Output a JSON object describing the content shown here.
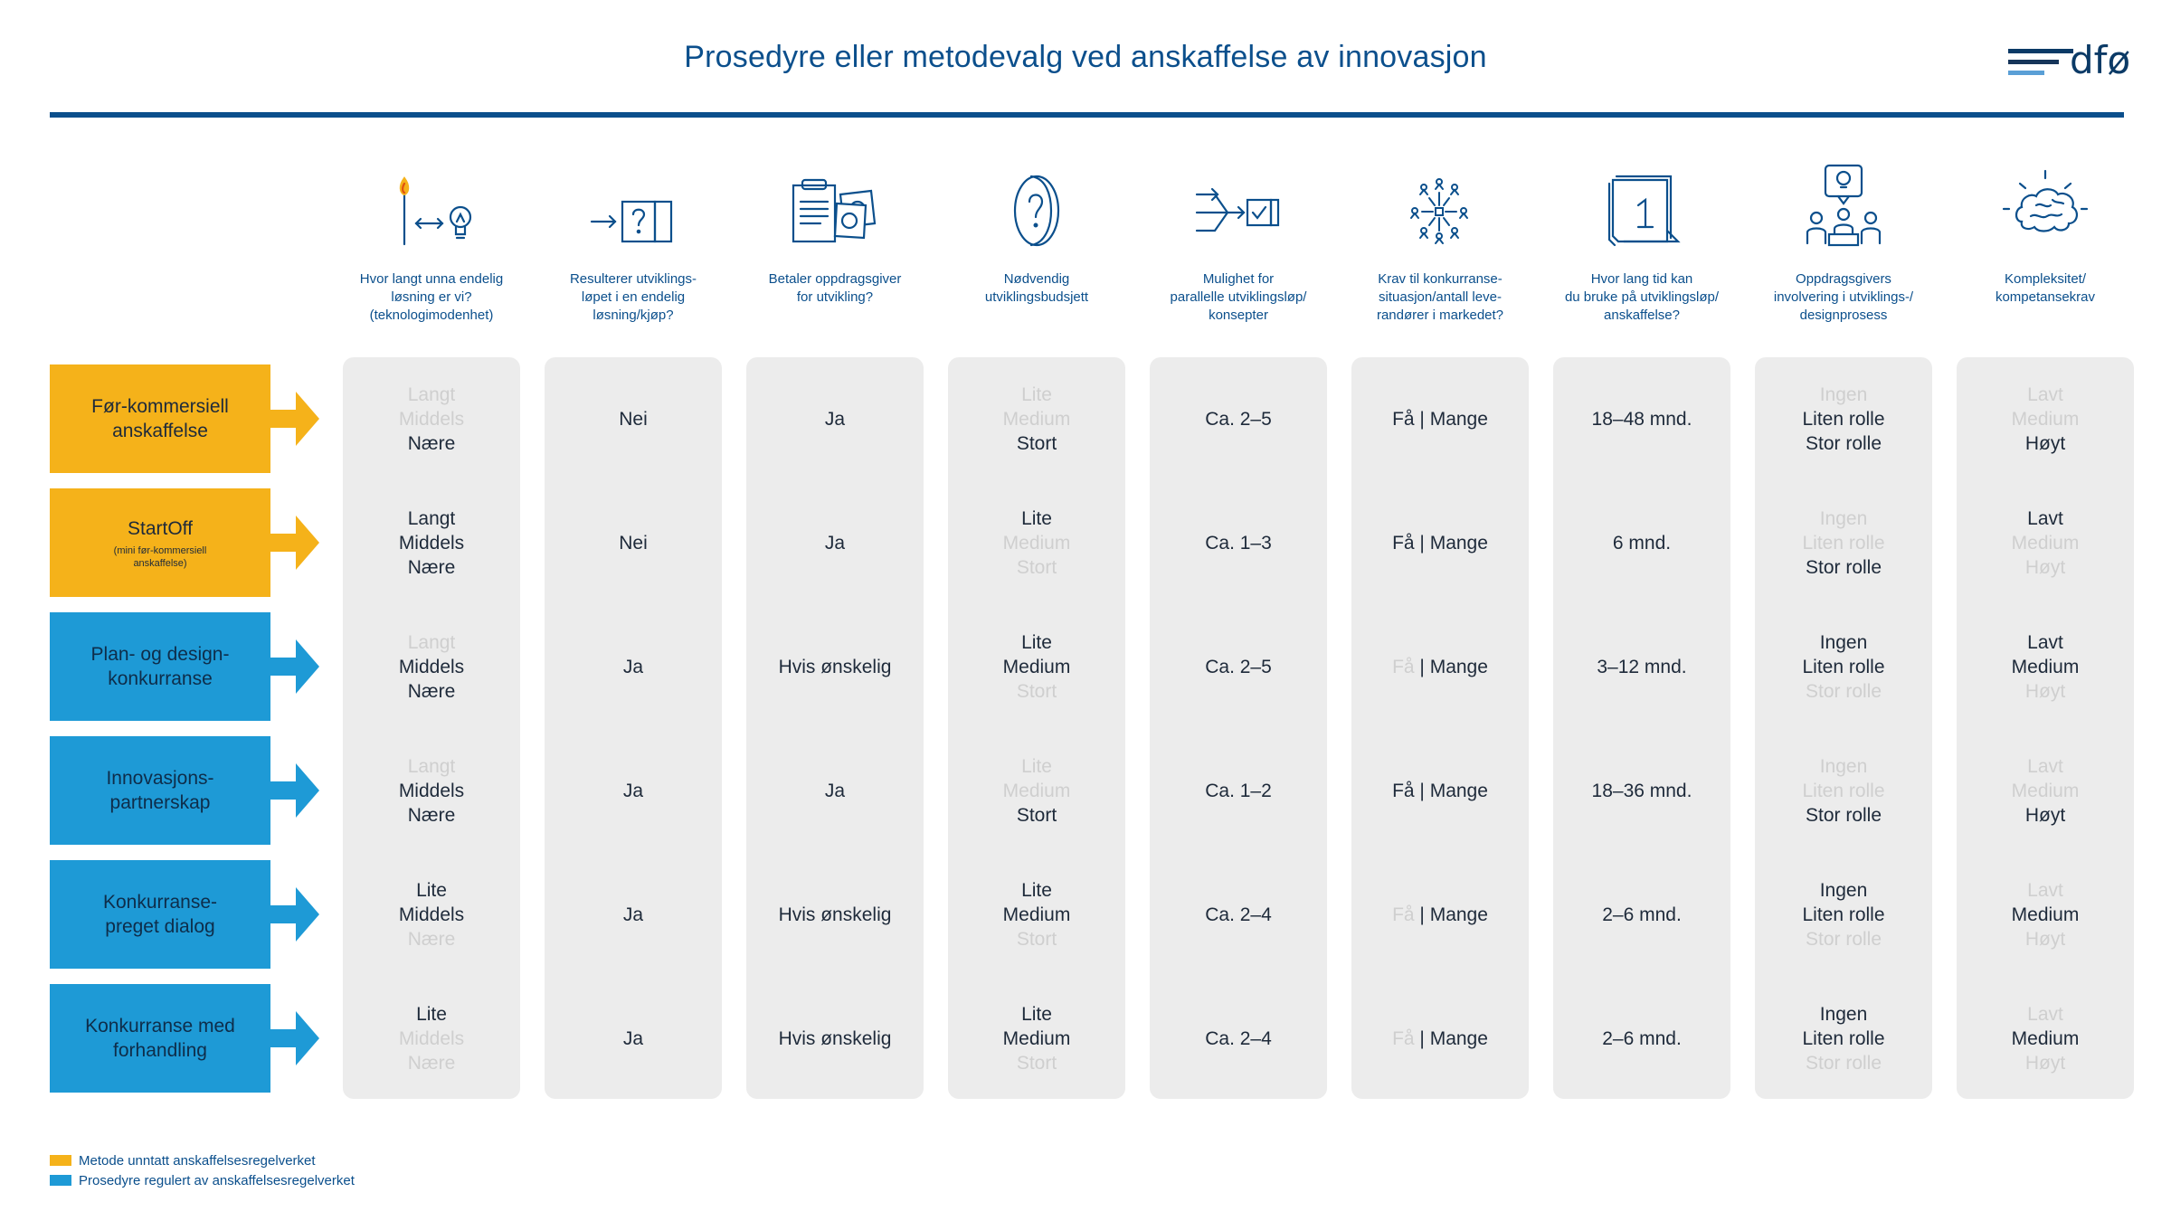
{
  "title": "Prosedyre eller metodevalg ved anskaffelse av innovasjon",
  "logo_text": "dfø",
  "colors": {
    "yellow": "#f5b21a",
    "blue": "#1e9ad6",
    "navy": "#0b4f8c",
    "column_bg": "#ececec",
    "dim_text": "#cfcfcf"
  },
  "columns": [
    {
      "icon": "match-to-lightbulb-icon",
      "question": "Hvor langt unna endelig\nløsning er vi?\n(teknologimodenhet)"
    },
    {
      "icon": "arrow-to-question-box-icon",
      "question": "Resulterer utviklings-\nløpet i en endelig\nløsning/kjøp?"
    },
    {
      "icon": "document-and-money-icon",
      "question": "Betaler oppdragsgiver\nfor utvikling?"
    },
    {
      "icon": "coin-question-icon",
      "question": "Nødvendig\nutviklingsbudsjett"
    },
    {
      "icon": "parallel-arrows-checkbox-icon",
      "question": "Mulighet for\nparallelle utviklingsløp/\nkonsepter"
    },
    {
      "icon": "people-network-icon",
      "question": "Krav til konkurranse-\nsituasjon/antall leve-\nrandører i markedet?"
    },
    {
      "icon": "calendar-icon",
      "question": "Hvor lang tid kan\ndu bruke på utviklingsløp/\nanskaffelse?"
    },
    {
      "icon": "meeting-idea-icon",
      "question": "Oppdragsgivers\ninvolvering i utviklings-/\ndesignprosess"
    },
    {
      "icon": "brain-icon",
      "question": "Kompleksitet/\nkompetansekrav"
    }
  ],
  "rows": [
    {
      "label": "Før-kommersiell\nanskaffelse",
      "sublabel": "",
      "color": "yellow",
      "cells": [
        {
          "type": "list",
          "items": [
            {
              "text": "Langt",
              "active": false
            },
            {
              "text": "Middels",
              "active": false
            },
            {
              "text": "Nære",
              "active": true
            }
          ]
        },
        {
          "type": "text",
          "text": "Nei"
        },
        {
          "type": "text",
          "text": "Ja"
        },
        {
          "type": "list",
          "items": [
            {
              "text": "Lite",
              "active": false
            },
            {
              "text": "Medium",
              "active": false
            },
            {
              "text": "Stort",
              "active": true
            }
          ]
        },
        {
          "type": "text",
          "text": "Ca. 2–5"
        },
        {
          "type": "pair",
          "a": "Få",
          "sep": " | ",
          "b": "Mange",
          "a_active": true,
          "b_active": true
        },
        {
          "type": "text",
          "text": "18–48 mnd."
        },
        {
          "type": "list",
          "items": [
            {
              "text": "Ingen",
              "active": false
            },
            {
              "text": "Liten rolle",
              "active": true
            },
            {
              "text": "Stor rolle",
              "active": true
            }
          ]
        },
        {
          "type": "list",
          "items": [
            {
              "text": "Lavt",
              "active": false
            },
            {
              "text": "Medium",
              "active": false
            },
            {
              "text": "Høyt",
              "active": true
            }
          ]
        }
      ]
    },
    {
      "label": "StartOff",
      "sublabel": "(mini før-kommersiell\nanskaffelse)",
      "color": "yellow",
      "cells": [
        {
          "type": "list",
          "items": [
            {
              "text": "Langt",
              "active": true
            },
            {
              "text": "Middels",
              "active": true
            },
            {
              "text": "Nære",
              "active": true
            }
          ]
        },
        {
          "type": "text",
          "text": "Nei"
        },
        {
          "type": "text",
          "text": "Ja"
        },
        {
          "type": "list",
          "items": [
            {
              "text": "Lite",
              "active": true
            },
            {
              "text": "Medium",
              "active": false
            },
            {
              "text": "Stort",
              "active": false
            }
          ]
        },
        {
          "type": "text",
          "text": "Ca. 1–3"
        },
        {
          "type": "pair",
          "a": "Få",
          "sep": " | ",
          "b": "Mange",
          "a_active": true,
          "b_active": true
        },
        {
          "type": "text",
          "text": "6 mnd."
        },
        {
          "type": "list",
          "items": [
            {
              "text": "Ingen",
              "active": false
            },
            {
              "text": "Liten rolle",
              "active": false
            },
            {
              "text": "Stor rolle",
              "active": true
            }
          ]
        },
        {
          "type": "list",
          "items": [
            {
              "text": "Lavt",
              "active": true
            },
            {
              "text": "Medium",
              "active": false
            },
            {
              "text": "Høyt",
              "active": false
            }
          ]
        }
      ]
    },
    {
      "label": "Plan- og design-\nkonkurranse",
      "sublabel": "",
      "color": "blue",
      "cells": [
        {
          "type": "list",
          "items": [
            {
              "text": "Langt",
              "active": false
            },
            {
              "text": "Middels",
              "active": true
            },
            {
              "text": "Nære",
              "active": true
            }
          ]
        },
        {
          "type": "text",
          "text": "Ja"
        },
        {
          "type": "text",
          "text": "Hvis ønskelig"
        },
        {
          "type": "list",
          "items": [
            {
              "text": "Lite",
              "active": true
            },
            {
              "text": "Medium",
              "active": true
            },
            {
              "text": "Stort",
              "active": false
            }
          ]
        },
        {
          "type": "text",
          "text": "Ca. 2–5"
        },
        {
          "type": "pair",
          "a": "Få",
          "sep": " | ",
          "b": "Mange",
          "a_active": false,
          "b_active": true
        },
        {
          "type": "text",
          "text": "3–12 mnd."
        },
        {
          "type": "list",
          "items": [
            {
              "text": "Ingen",
              "active": true
            },
            {
              "text": "Liten rolle",
              "active": true
            },
            {
              "text": "Stor rolle",
              "active": false
            }
          ]
        },
        {
          "type": "list",
          "items": [
            {
              "text": "Lavt",
              "active": true
            },
            {
              "text": "Medium",
              "active": true
            },
            {
              "text": "Høyt",
              "active": false
            }
          ]
        }
      ]
    },
    {
      "label": "Innovasjons-\npartnerskap",
      "sublabel": "",
      "color": "blue",
      "cells": [
        {
          "type": "list",
          "items": [
            {
              "text": "Langt",
              "active": false
            },
            {
              "text": "Middels",
              "active": true
            },
            {
              "text": "Nære",
              "active": true
            }
          ]
        },
        {
          "type": "text",
          "text": "Ja"
        },
        {
          "type": "text",
          "text": "Ja"
        },
        {
          "type": "list",
          "items": [
            {
              "text": "Lite",
              "active": false
            },
            {
              "text": "Medium",
              "active": false
            },
            {
              "text": "Stort",
              "active": true
            }
          ]
        },
        {
          "type": "text",
          "text": "Ca. 1–2"
        },
        {
          "type": "pair",
          "a": "Få",
          "sep": " | ",
          "b": "Mange",
          "a_active": true,
          "b_active": true
        },
        {
          "type": "text",
          "text": "18–36 mnd."
        },
        {
          "type": "list",
          "items": [
            {
              "text": "Ingen",
              "active": false
            },
            {
              "text": "Liten rolle",
              "active": false
            },
            {
              "text": "Stor rolle",
              "active": true
            }
          ]
        },
        {
          "type": "list",
          "items": [
            {
              "text": "Lavt",
              "active": false
            },
            {
              "text": "Medium",
              "active": false
            },
            {
              "text": "Høyt",
              "active": true
            }
          ]
        }
      ]
    },
    {
      "label": "Konkurranse-\npreget dialog",
      "sublabel": "",
      "color": "blue",
      "cells": [
        {
          "type": "list",
          "items": [
            {
              "text": "Lite",
              "active": true
            },
            {
              "text": "Middels",
              "active": true
            },
            {
              "text": "Nære",
              "active": false
            }
          ]
        },
        {
          "type": "text",
          "text": "Ja"
        },
        {
          "type": "text",
          "text": "Hvis ønskelig"
        },
        {
          "type": "list",
          "items": [
            {
              "text": "Lite",
              "active": true
            },
            {
              "text": "Medium",
              "active": true
            },
            {
              "text": "Stort",
              "active": false
            }
          ]
        },
        {
          "type": "text",
          "text": "Ca. 2–4"
        },
        {
          "type": "pair",
          "a": "Få",
          "sep": " | ",
          "b": "Mange",
          "a_active": false,
          "b_active": true
        },
        {
          "type": "text",
          "text": "2–6 mnd."
        },
        {
          "type": "list",
          "items": [
            {
              "text": "Ingen",
              "active": true
            },
            {
              "text": "Liten rolle",
              "active": true
            },
            {
              "text": "Stor rolle",
              "active": false
            }
          ]
        },
        {
          "type": "list",
          "items": [
            {
              "text": "Lavt",
              "active": false
            },
            {
              "text": "Medium",
              "active": true
            },
            {
              "text": "Høyt",
              "active": false
            }
          ]
        }
      ]
    },
    {
      "label": "Konkurranse med\nforhandling",
      "sublabel": "",
      "color": "blue",
      "cells": [
        {
          "type": "list",
          "items": [
            {
              "text": "Lite",
              "active": true
            },
            {
              "text": "Middels",
              "active": false
            },
            {
              "text": "Nære",
              "active": false
            }
          ]
        },
        {
          "type": "text",
          "text": "Ja"
        },
        {
          "type": "text",
          "text": "Hvis ønskelig"
        },
        {
          "type": "list",
          "items": [
            {
              "text": "Lite",
              "active": true
            },
            {
              "text": "Medium",
              "active": true
            },
            {
              "text": "Stort",
              "active": false
            }
          ]
        },
        {
          "type": "text",
          "text": "Ca. 2–4"
        },
        {
          "type": "pair",
          "a": "Få",
          "sep": " | ",
          "b": "Mange",
          "a_active": false,
          "b_active": true
        },
        {
          "type": "text",
          "text": "2–6 mnd."
        },
        {
          "type": "list",
          "items": [
            {
              "text": "Ingen",
              "active": true
            },
            {
              "text": "Liten rolle",
              "active": true
            },
            {
              "text": "Stor rolle",
              "active": false
            }
          ]
        },
        {
          "type": "list",
          "items": [
            {
              "text": "Lavt",
              "active": false
            },
            {
              "text": "Medium",
              "active": true
            },
            {
              "text": "Høyt",
              "active": false
            }
          ]
        }
      ]
    }
  ],
  "legend": [
    {
      "color": "yellow",
      "text": "Metode unntatt anskaffelsesregelverket"
    },
    {
      "color": "blue",
      "text": "Prosedyre regulert av anskaffelsesregelverket"
    }
  ]
}
